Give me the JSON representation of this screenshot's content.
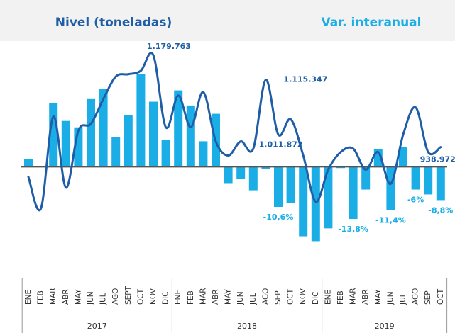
{
  "chart_data": {
    "type": "bar",
    "categories": [
      "ENE",
      "FEB",
      "MAR",
      "ABR",
      "MAY",
      "JUN",
      "JUL",
      "AGO",
      "SEPT",
      "OCT",
      "NOV",
      "DIC",
      "ENE",
      "FEB",
      "MAR",
      "ABR",
      "MAY",
      "JUN",
      "JUL",
      "AGO",
      "SEP",
      "OCT",
      "NOV",
      "DIC",
      "ENE",
      "FEB",
      "MAR",
      "ABR",
      "MAY",
      "JUN",
      "JUL",
      "AGO",
      "SEP",
      "OCT"
    ],
    "groups": [
      {
        "label": "2017",
        "span": 12
      },
      {
        "label": "2018",
        "span": 12
      },
      {
        "label": "2019",
        "span": 10
      }
    ],
    "ylim": [
      -23,
      33
    ],
    "y2lim": [
      660000,
      1213000
    ],
    "series": [
      {
        "name": "Var. interanual",
        "type": "bar",
        "color": "#1aade6",
        "values": [
          2.1,
          0,
          16.9,
          12.2,
          10.5,
          18.0,
          20.6,
          7.9,
          13.7,
          24.6,
          17.3,
          7.1,
          20.3,
          16.3,
          6.8,
          14.1,
          -4.3,
          -3.2,
          -6.2,
          -0.6,
          -10.6,
          -9.6,
          -18.4,
          -19.7,
          -16.3,
          -0.3,
          -13.8,
          -6.0,
          4.7,
          -11.4,
          5.3,
          -6,
          -7.3,
          -8.8
        ],
        "value_labels": [
          null,
          null,
          null,
          null,
          null,
          null,
          null,
          null,
          null,
          null,
          null,
          null,
          null,
          null,
          null,
          null,
          null,
          null,
          null,
          null,
          "-10,6%",
          null,
          null,
          null,
          null,
          null,
          "-13,8%",
          null,
          null,
          "-11,4%",
          null,
          "-6%",
          null,
          "-8,8%"
        ]
      },
      {
        "name": "Nivel (toneladas)",
        "type": "line",
        "axis": "y2",
        "color": "#1f5ea6",
        "values": [
          861000,
          778000,
          1019000,
          833000,
          982000,
          1000000,
          1065000,
          1124000,
          1130000,
          1139000,
          1179763,
          991000,
          1074000,
          991000,
          1083000,
          954000,
          917000,
          954000,
          935000,
          1115347,
          972000,
          1011872,
          917000,
          796000,
          880000,
          926000,
          935000,
          880000,
          926000,
          843000,
          972000,
          1043000,
          926000,
          938972
        ],
        "value_labels": [
          null,
          null,
          null,
          null,
          null,
          null,
          null,
          null,
          null,
          null,
          "1.179.763",
          null,
          null,
          null,
          null,
          null,
          null,
          null,
          null,
          "1.115.347",
          null,
          "1.011.872",
          null,
          null,
          null,
          null,
          null,
          null,
          null,
          null,
          null,
          null,
          null,
          "938.972"
        ]
      }
    ]
  }
}
